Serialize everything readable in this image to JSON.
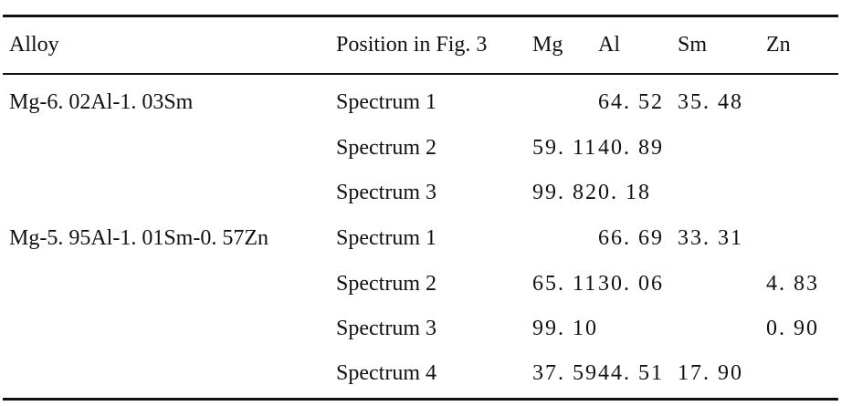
{
  "table": {
    "columns": {
      "alloy": "Alloy",
      "position": "Position in Fig. 3",
      "mg": "Mg",
      "al": "Al",
      "sm": "Sm",
      "zn": "Zn"
    },
    "rows": [
      {
        "alloy": "Mg-6. 02Al-1. 03Sm",
        "position": "Spectrum 1",
        "mg": "",
        "al": "64. 52",
        "sm": "35. 48",
        "zn": ""
      },
      {
        "alloy": "",
        "position": "Spectrum 2",
        "mg": "59. 11",
        "al": "40. 89",
        "sm": "",
        "zn": ""
      },
      {
        "alloy": "",
        "position": "Spectrum 3",
        "mg": "99. 82",
        "al": "0. 18",
        "sm": "",
        "zn": ""
      },
      {
        "alloy": "Mg-5. 95Al-1. 01Sm-0. 57Zn",
        "position": "Spectrum 1",
        "mg": "",
        "al": "66. 69",
        "sm": "33. 31",
        "zn": ""
      },
      {
        "alloy": "",
        "position": "Spectrum 2",
        "mg": "65. 11",
        "al": "30. 06",
        "sm": "",
        "zn": "4. 83"
      },
      {
        "alloy": "",
        "position": "Spectrum 3",
        "mg": "99. 10",
        "al": "",
        "sm": "",
        "zn": "0. 90"
      },
      {
        "alloy": "",
        "position": "Spectrum 4",
        "mg": "37. 59",
        "al": "44. 51",
        "sm": "17. 90",
        "zn": ""
      }
    ]
  }
}
